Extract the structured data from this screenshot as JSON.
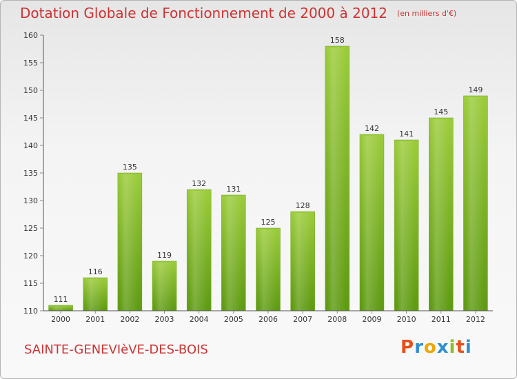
{
  "header": {
    "title": "Dotation Globale de Fonctionnement de 2000 à 2012",
    "unit": "(en milliers d'€)"
  },
  "footer": {
    "commune": "SAINTE-GENEVIèVE-DES-BOIS",
    "logo_text": "Proxiti",
    "logo_colors": [
      "#e94e1b",
      "#2f8fce",
      "#f0a500",
      "#2f8fce",
      "#8cbf26",
      "#e94e1b",
      "#2f8fce"
    ]
  },
  "colors": {
    "title": "#cc3333",
    "bar_top": "#9ccc3c",
    "bar_bottom": "#5e9a12",
    "axis": "#555555",
    "grid_tick": "#888888"
  },
  "chart_data": {
    "type": "bar",
    "categories": [
      "2000",
      "2001",
      "2002",
      "2003",
      "2004",
      "2005",
      "2006",
      "2007",
      "2008",
      "2009",
      "2010",
      "2011",
      "2012"
    ],
    "values": [
      111,
      116,
      135,
      119,
      132,
      131,
      125,
      128,
      158,
      142,
      141,
      145,
      149
    ],
    "title": "Dotation Globale de Fonctionnement de 2000 à 2012",
    "ylim": [
      110,
      160
    ],
    "yticks": [
      110,
      115,
      120,
      125,
      130,
      135,
      140,
      145,
      150,
      155,
      160
    ],
    "grid": false,
    "data_labels": true
  }
}
